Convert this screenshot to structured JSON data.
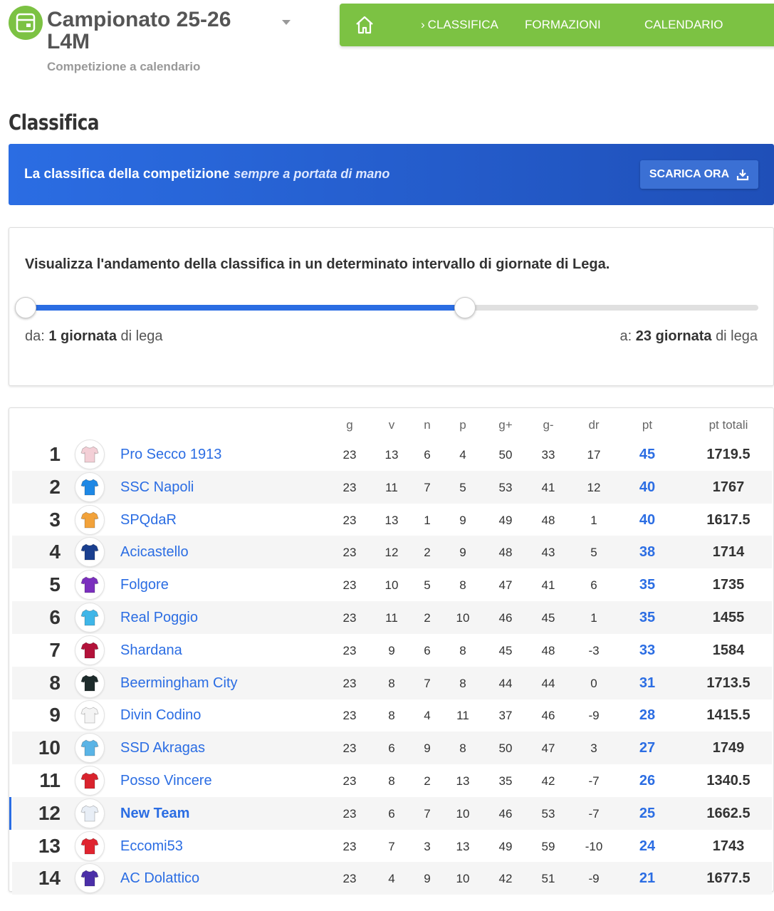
{
  "header": {
    "title": "Campionato 25-26 L4M",
    "subtitle": "Competizione a calendario"
  },
  "nav": {
    "items": [
      {
        "label": "CLASSIFICA",
        "active": true
      },
      {
        "label": "FORMAZIONI",
        "active": false
      },
      {
        "label": "CALENDARIO",
        "active": false
      }
    ]
  },
  "page": {
    "title": "Classifica"
  },
  "banner": {
    "text": "La classifica della competizione",
    "text_em": "sempre a portata di mano",
    "button": "SCARICA ORA"
  },
  "range": {
    "description": "Visualizza l'andamento della classifica in un determinato intervallo di giornate di Lega.",
    "from_prefix": "da:",
    "from_value": "1 giornata",
    "from_suffix": "di lega",
    "to_prefix": "a:",
    "to_value": "23 giornata",
    "to_suffix": "di lega",
    "fill_fraction": 0.6
  },
  "table": {
    "headers": [
      "g",
      "v",
      "n",
      "p",
      "g+",
      "g-",
      "dr",
      "pt",
      "pt totali"
    ],
    "rows": [
      {
        "pos": "1",
        "team": "Pro Secco 1913",
        "shirt": "#f3cfd6",
        "g": "23",
        "v": "13",
        "n": "6",
        "p": "4",
        "gf": "50",
        "ga": "33",
        "dr": "17",
        "pt": "45",
        "tot": "1719.5"
      },
      {
        "pos": "2",
        "team": "SSC Napoli",
        "shirt": "#1e88e5",
        "g": "23",
        "v": "11",
        "n": "7",
        "p": "5",
        "gf": "53",
        "ga": "41",
        "dr": "12",
        "pt": "40",
        "tot": "1767"
      },
      {
        "pos": "3",
        "team": "SPQdaR",
        "shirt": "#f2a23a",
        "g": "23",
        "v": "13",
        "n": "1",
        "p": "9",
        "gf": "49",
        "ga": "48",
        "dr": "1",
        "pt": "40",
        "tot": "1617.5"
      },
      {
        "pos": "4",
        "team": "Acicastello",
        "shirt": "#1a3f8f",
        "g": "23",
        "v": "12",
        "n": "2",
        "p": "9",
        "gf": "48",
        "ga": "43",
        "dr": "5",
        "pt": "38",
        "tot": "1714"
      },
      {
        "pos": "5",
        "team": "Folgore",
        "shirt": "#7b2fbe",
        "g": "23",
        "v": "10",
        "n": "5",
        "p": "8",
        "gf": "47",
        "ga": "41",
        "dr": "6",
        "pt": "35",
        "tot": "1735"
      },
      {
        "pos": "6",
        "team": "Real Poggio",
        "shirt": "#3fb6e8",
        "g": "23",
        "v": "11",
        "n": "2",
        "p": "10",
        "gf": "46",
        "ga": "45",
        "dr": "1",
        "pt": "35",
        "tot": "1455"
      },
      {
        "pos": "7",
        "team": "Shardana",
        "shirt": "#b3123a",
        "g": "23",
        "v": "9",
        "n": "6",
        "p": "8",
        "gf": "45",
        "ga": "48",
        "dr": "-3",
        "pt": "33",
        "tot": "1584"
      },
      {
        "pos": "8",
        "team": "Beermingham City",
        "shirt": "#1d2b2b",
        "g": "23",
        "v": "8",
        "n": "7",
        "p": "8",
        "gf": "44",
        "ga": "44",
        "dr": "0",
        "pt": "31",
        "tot": "1713.5"
      },
      {
        "pos": "9",
        "team": "Divin Codino",
        "shirt": "#f4f4f4",
        "g": "23",
        "v": "8",
        "n": "4",
        "p": "11",
        "gf": "37",
        "ga": "46",
        "dr": "-9",
        "pt": "28",
        "tot": "1415.5"
      },
      {
        "pos": "10",
        "team": "SSD Akragas",
        "shirt": "#5ab4e6",
        "g": "23",
        "v": "6",
        "n": "9",
        "p": "8",
        "gf": "50",
        "ga": "47",
        "dr": "3",
        "pt": "27",
        "tot": "1749"
      },
      {
        "pos": "11",
        "team": "Posso Vincere",
        "shirt": "#d9232d",
        "g": "23",
        "v": "8",
        "n": "2",
        "p": "13",
        "gf": "35",
        "ga": "42",
        "dr": "-7",
        "pt": "26",
        "tot": "1340.5"
      },
      {
        "pos": "12",
        "team": "New Team",
        "shirt": "#e8eef6",
        "g": "23",
        "v": "6",
        "n": "7",
        "p": "10",
        "gf": "46",
        "ga": "53",
        "dr": "-7",
        "pt": "25",
        "tot": "1662.5"
      },
      {
        "pos": "13",
        "team": "Eccomi53",
        "shirt": "#e0242f",
        "g": "23",
        "v": "7",
        "n": "3",
        "p": "13",
        "gf": "49",
        "ga": "59",
        "dr": "-10",
        "pt": "24",
        "tot": "1743"
      },
      {
        "pos": "14",
        "team": "AC Dolattico",
        "shirt": "#4b2fa8",
        "g": "23",
        "v": "4",
        "n": "9",
        "p": "10",
        "gf": "42",
        "ga": "51",
        "dr": "-9",
        "pt": "21",
        "tot": "1677.5"
      }
    ]
  },
  "colors": {
    "green": "#7cc243",
    "blue": "#2b6de3"
  }
}
